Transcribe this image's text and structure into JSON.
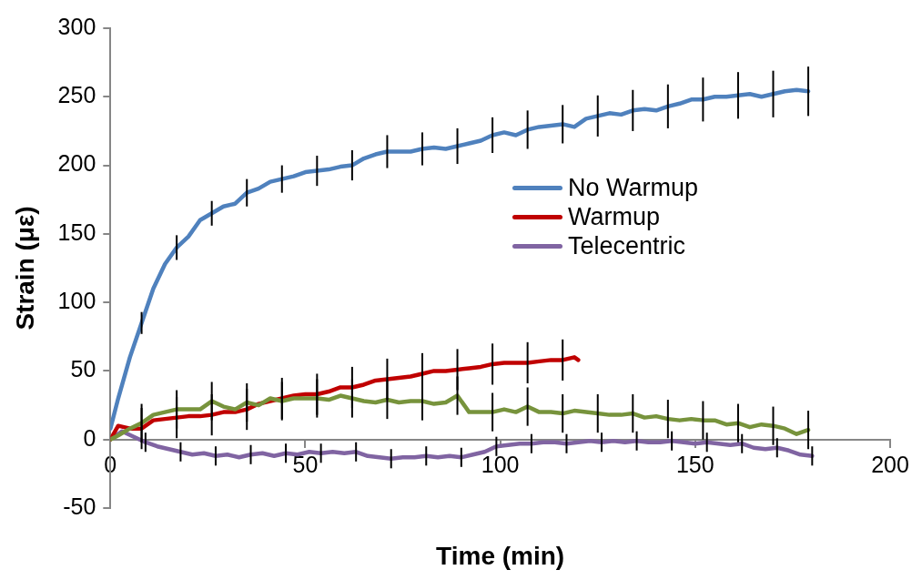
{
  "chart_data": {
    "type": "line",
    "xlabel": "Time (min)",
    "ylabel": "Strain (με)",
    "xlim": [
      0,
      200
    ],
    "xticks": [
      0,
      50,
      100,
      150,
      200
    ],
    "ylim": [
      -50,
      300
    ],
    "yticks": [
      -50,
      0,
      50,
      100,
      150,
      200,
      250,
      300
    ],
    "grid": false,
    "legend": "right",
    "marker": "none",
    "line_style": "solid",
    "series": [
      {
        "name": "No Warmup",
        "color": "#4f81bd",
        "x": [
          0,
          2,
          5,
          8,
          11,
          14,
          17,
          20,
          23,
          26,
          29,
          32,
          35,
          38,
          41,
          44,
          47,
          50,
          53,
          56,
          59,
          62,
          65,
          68,
          71,
          74,
          77,
          80,
          83,
          86,
          89,
          92,
          95,
          98,
          101,
          104,
          107,
          110,
          113,
          116,
          119,
          122,
          125,
          128,
          131,
          134,
          137,
          140,
          143,
          146,
          149,
          152,
          155,
          158,
          161,
          164,
          167,
          170,
          173,
          176,
          179
        ],
        "values": [
          8,
          30,
          60,
          85,
          110,
          128,
          140,
          148,
          160,
          165,
          170,
          172,
          180,
          183,
          188,
          190,
          192,
          195,
          196,
          197,
          199,
          200,
          205,
          208,
          210,
          210,
          210,
          212,
          213,
          212,
          214,
          216,
          218,
          222,
          224,
          222,
          226,
          228,
          229,
          230,
          228,
          234,
          236,
          238,
          237,
          240,
          241,
          240,
          243,
          245,
          248,
          248,
          250,
          250,
          251,
          252,
          250,
          252,
          254,
          255,
          254
        ],
        "errors": [
          null,
          null,
          null,
          8,
          null,
          null,
          9,
          null,
          null,
          9,
          null,
          null,
          10,
          null,
          null,
          10,
          null,
          null,
          11,
          null,
          null,
          11,
          null,
          null,
          12,
          null,
          null,
          12,
          null,
          null,
          13,
          null,
          null,
          13,
          null,
          null,
          14,
          null,
          null,
          14,
          null,
          null,
          15,
          null,
          null,
          15,
          null,
          null,
          16,
          null,
          null,
          16,
          null,
          null,
          17,
          null,
          null,
          17,
          null,
          null,
          18
        ]
      },
      {
        "color": "#77933c",
        "x": [
          0,
          2,
          5,
          8,
          11,
          14,
          17,
          20,
          23,
          26,
          29,
          32,
          35,
          38,
          41,
          44,
          47,
          50,
          53,
          56,
          59,
          62,
          65,
          68,
          71,
          74,
          77,
          80,
          83,
          86,
          89,
          92,
          95,
          98,
          101,
          104,
          107,
          110,
          113,
          116,
          119,
          122,
          125,
          128,
          131,
          134,
          137,
          140,
          143,
          146,
          149,
          152,
          155,
          158,
          161,
          164,
          167,
          170,
          173,
          176,
          179
        ],
        "values": [
          0,
          3,
          8,
          12,
          18,
          20,
          22,
          22,
          22,
          28,
          24,
          22,
          27,
          25,
          30,
          28,
          30,
          30,
          30,
          29,
          32,
          30,
          28,
          27,
          29,
          27,
          28,
          28,
          26,
          27,
          32,
          20,
          20,
          20,
          22,
          20,
          24,
          20,
          20,
          19,
          21,
          20,
          19,
          18,
          18,
          19,
          16,
          17,
          15,
          14,
          15,
          14,
          14,
          11,
          12,
          9,
          11,
          10,
          8,
          4,
          7
        ],
        "errors": [
          null,
          null,
          null,
          14,
          null,
          null,
          14,
          null,
          null,
          14,
          null,
          null,
          14,
          null,
          null,
          14,
          null,
          null,
          14,
          null,
          null,
          14,
          null,
          null,
          14,
          null,
          null,
          14,
          null,
          null,
          14,
          null,
          null,
          14,
          null,
          null,
          14,
          null,
          null,
          14,
          null,
          null,
          14,
          null,
          null,
          14,
          null,
          null,
          14,
          null,
          null,
          14,
          null,
          null,
          14,
          null,
          null,
          14,
          null,
          null,
          14
        ]
      },
      {
        "name": "Warmup",
        "color": "#c00000",
        "x": [
          0,
          2,
          5,
          8,
          11,
          14,
          17,
          20,
          23,
          26,
          29,
          32,
          35,
          38,
          41,
          44,
          47,
          50,
          53,
          56,
          59,
          62,
          65,
          68,
          71,
          74,
          77,
          80,
          83,
          86,
          89,
          92,
          95,
          98,
          101,
          104,
          107,
          110,
          113,
          116,
          119,
          120
        ],
        "values": [
          0,
          10,
          8,
          8,
          14,
          15,
          16,
          17,
          17,
          18,
          20,
          20,
          22,
          26,
          28,
          30,
          32,
          33,
          33,
          35,
          38,
          38,
          40,
          43,
          44,
          45,
          46,
          48,
          50,
          50,
          51,
          52,
          53,
          55,
          56,
          56,
          56,
          57,
          58,
          58,
          60,
          58
        ],
        "errors": [
          null,
          null,
          null,
          15,
          null,
          null,
          15,
          null,
          null,
          15,
          null,
          null,
          15,
          null,
          null,
          15,
          null,
          null,
          15,
          null,
          null,
          15,
          null,
          null,
          15,
          null,
          null,
          15,
          null,
          null,
          15,
          null,
          null,
          15,
          null,
          null,
          15,
          null,
          null,
          15,
          null,
          null
        ]
      },
      {
        "name": "Telecentric",
        "color": "#8064a2",
        "x": [
          0,
          3,
          6,
          9,
          12,
          15,
          18,
          21,
          24,
          27,
          30,
          33,
          36,
          39,
          42,
          45,
          48,
          51,
          54,
          57,
          60,
          63,
          66,
          69,
          72,
          75,
          78,
          81,
          84,
          87,
          90,
          93,
          96,
          99,
          102,
          105,
          108,
          111,
          114,
          117,
          120,
          123,
          126,
          129,
          132,
          135,
          138,
          141,
          144,
          147,
          150,
          153,
          156,
          159,
          162,
          165,
          168,
          171,
          174,
          177,
          180
        ],
        "values": [
          0,
          6,
          2,
          -2,
          -5,
          -7,
          -9,
          -11,
          -10,
          -12,
          -11,
          -13,
          -11,
          -10,
          -12,
          -10,
          -11,
          -9,
          -10,
          -9,
          -10,
          -9,
          -12,
          -13,
          -14,
          -13,
          -13,
          -12,
          -13,
          -12,
          -13,
          -11,
          -9,
          -5,
          -4,
          -3,
          -3,
          -2,
          -2,
          -3,
          -2,
          -1,
          -2,
          -1,
          -2,
          -1,
          -2,
          -2,
          -1,
          -2,
          -3,
          -2,
          -3,
          -4,
          -3,
          -6,
          -7,
          -6,
          -8,
          -11,
          -12
        ],
        "errors": [
          null,
          null,
          null,
          7,
          null,
          null,
          7,
          null,
          null,
          7,
          null,
          null,
          7,
          null,
          null,
          7,
          null,
          null,
          7,
          null,
          null,
          7,
          null,
          null,
          7,
          null,
          null,
          7,
          null,
          null,
          7,
          null,
          null,
          7,
          null,
          null,
          7,
          null,
          null,
          7,
          null,
          null,
          7,
          null,
          null,
          7,
          null,
          null,
          7,
          null,
          null,
          7,
          null,
          null,
          7,
          null,
          null,
          7,
          null,
          null,
          7
        ]
      }
    ]
  }
}
